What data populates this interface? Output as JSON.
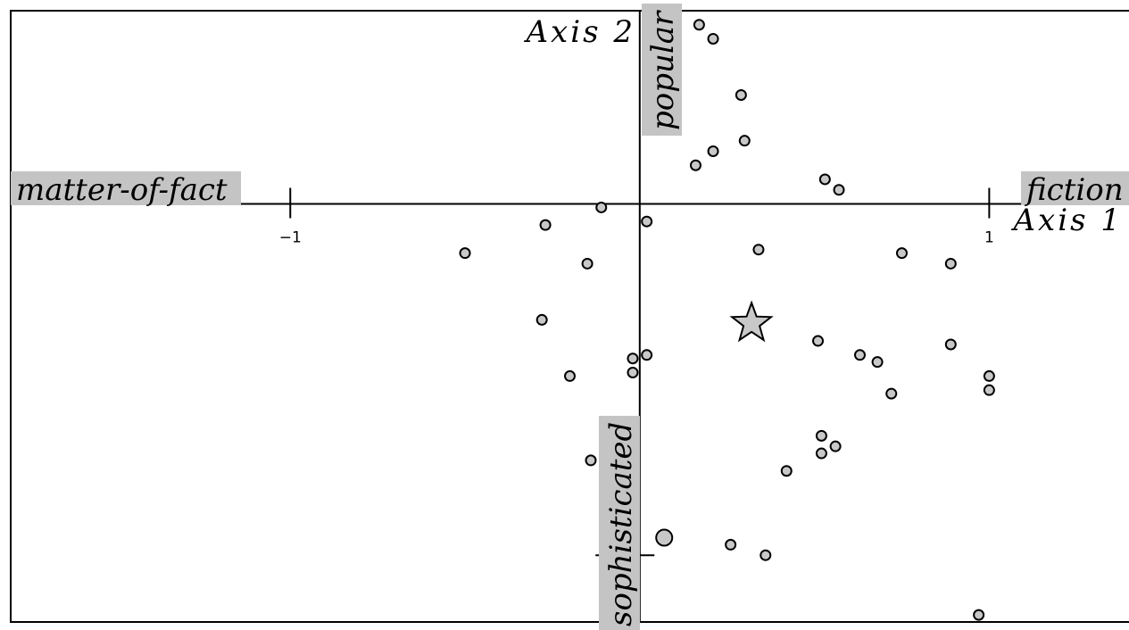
{
  "chart_data": {
    "type": "scatter",
    "axes": {
      "x": {
        "title": "Axis 1",
        "range": [
          -1.8,
          1.4
        ],
        "ticks": [
          {
            "value": -1,
            "label": "−1"
          },
          {
            "value": 1,
            "label": "1"
          }
        ]
      },
      "y": {
        "title": "Axis 2",
        "range": [
          -1.19,
          0.55
        ]
      }
    },
    "pole_labels": {
      "negative_x": "matter-of-fact",
      "positive_x": "fiction",
      "positive_y": "popular",
      "negative_y": "sophisticated"
    },
    "points": [
      {
        "x": 0.17,
        "y": 0.51
      },
      {
        "x": 0.21,
        "y": 0.47
      },
      {
        "x": 0.29,
        "y": 0.31
      },
      {
        "x": 0.3,
        "y": 0.18
      },
      {
        "x": 0.21,
        "y": 0.15
      },
      {
        "x": 0.16,
        "y": 0.11
      },
      {
        "x": 0.53,
        "y": 0.07
      },
      {
        "x": 0.57,
        "y": 0.04
      },
      {
        "x": -0.11,
        "y": -0.01
      },
      {
        "x": 0.02,
        "y": -0.05
      },
      {
        "x": -0.27,
        "y": -0.06
      },
      {
        "x": 0.34,
        "y": -0.13
      },
      {
        "x": -0.5,
        "y": -0.14
      },
      {
        "x": -0.15,
        "y": -0.17
      },
      {
        "x": 0.75,
        "y": -0.14
      },
      {
        "x": 0.89,
        "y": -0.17
      },
      {
        "x": -0.28,
        "y": -0.33
      },
      {
        "x": 0.51,
        "y": -0.39
      },
      {
        "x": 0.89,
        "y": -0.4
      },
      {
        "x": 0.63,
        "y": -0.43
      },
      {
        "x": 0.68,
        "y": -0.45
      },
      {
        "x": -0.02,
        "y": -0.44
      },
      {
        "x": 0.02,
        "y": -0.43
      },
      {
        "x": -0.02,
        "y": -0.48
      },
      {
        "x": -0.2,
        "y": -0.49
      },
      {
        "x": 1.0,
        "y": -0.49
      },
      {
        "x": 1.0,
        "y": -0.53
      },
      {
        "x": 0.72,
        "y": -0.54
      },
      {
        "x": 0.52,
        "y": -0.66
      },
      {
        "x": 0.56,
        "y": -0.69
      },
      {
        "x": 0.52,
        "y": -0.71
      },
      {
        "x": -0.14,
        "y": -0.73
      },
      {
        "x": 0.42,
        "y": -0.76
      },
      {
        "x": 0.26,
        "y": -0.97
      },
      {
        "x": 0.36,
        "y": -1.0
      },
      {
        "x": 0.97,
        "y": -1.17
      }
    ],
    "highlight_points": [
      {
        "x": 0.07,
        "y": -0.95,
        "marker": "large-circle"
      }
    ],
    "star_marker": {
      "x": 0.32,
      "y": -0.34
    },
    "cross_marker": {
      "x": -0.05,
      "y": -1.0
    },
    "grid": false,
    "legend": "none"
  }
}
